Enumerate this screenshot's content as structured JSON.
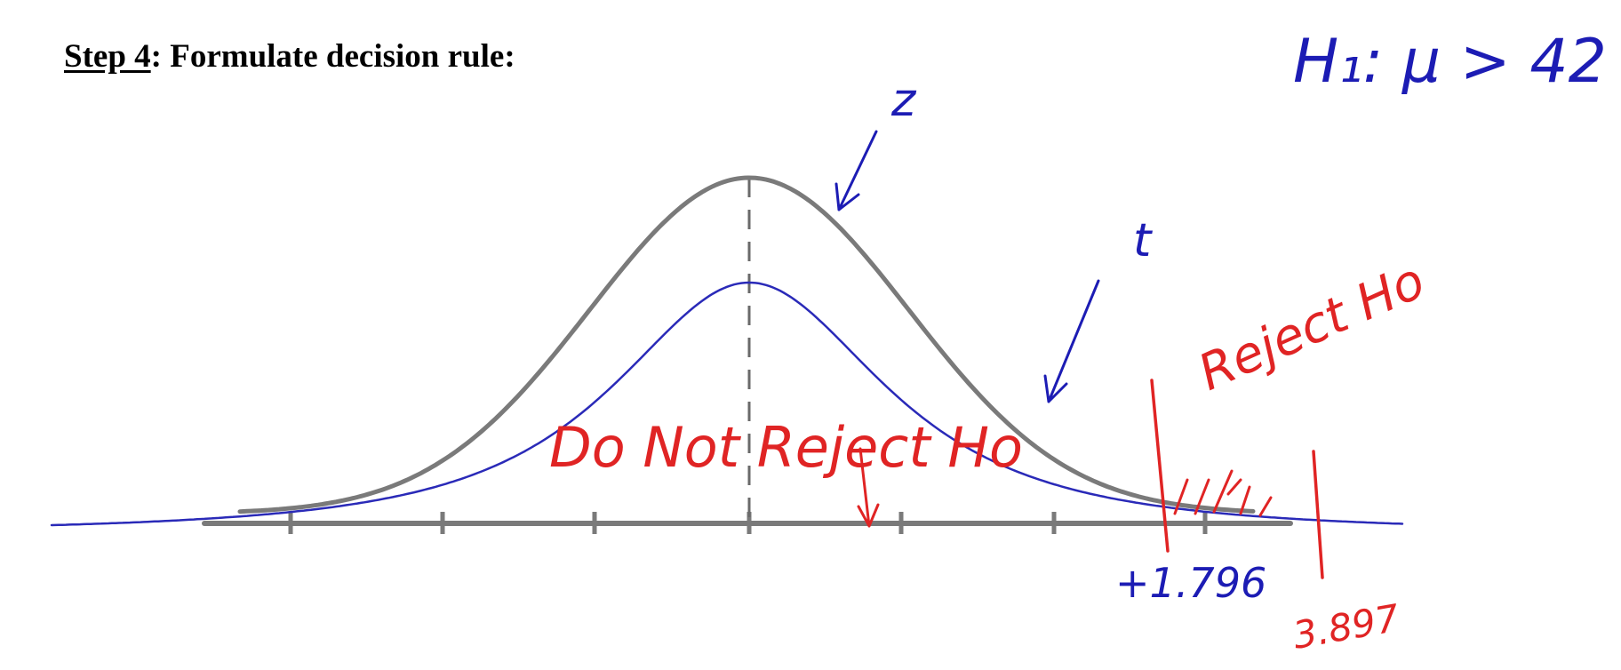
{
  "heading": {
    "step": "Step 4",
    "rest": ": Formulate decision rule:"
  },
  "annotations": {
    "hypothesis": "H₁: μ > 42",
    "z_label": "z",
    "t_label": "t",
    "do_not_reject": "Do Not Reject Ho",
    "reject": "Reject Ho",
    "critical_value": "+1.796",
    "test_statistic": "3.897"
  },
  "colors": {
    "printed": "#000000",
    "z_curve": "#7a7a7a",
    "t_curve": "#2a2ab8",
    "blue_ink": "#1c1cb4",
    "red_ink": "#e02424"
  }
}
